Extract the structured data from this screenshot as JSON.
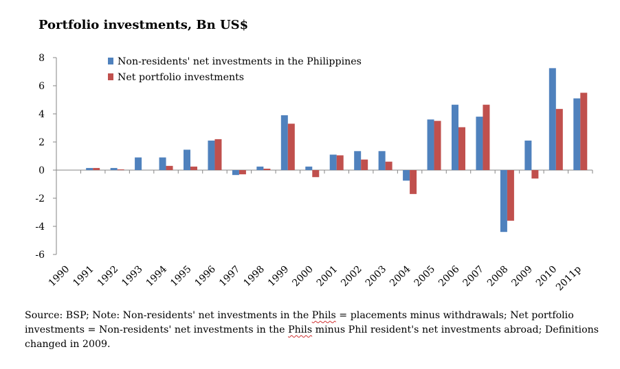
{
  "chart_data": {
    "type": "bar",
    "title": "Portfolio investments, Bn US$",
    "xlabel": "",
    "ylabel": "",
    "ylim": [
      -6,
      8
    ],
    "yticks": [
      8,
      6,
      4,
      2,
      0,
      -2,
      -4,
      -6
    ],
    "categories": [
      "1990",
      "1991",
      "1992",
      "1993",
      "1994",
      "1995",
      "1996",
      "1997",
      "1998",
      "1999",
      "2000",
      "2001",
      "2002",
      "2003",
      "2004",
      "2005",
      "2006",
      "2007",
      "2008",
      "2009",
      "2010",
      "2011p"
    ],
    "series": [
      {
        "name": "Non-residents' net investments in the Philippines",
        "color": "#4f81bd",
        "values": [
          0,
          0.15,
          0.15,
          0.9,
          0.9,
          1.45,
          2.1,
          -0.35,
          0.25,
          3.9,
          0.25,
          1.1,
          1.35,
          1.35,
          -0.75,
          3.6,
          4.65,
          3.8,
          -4.4,
          2.1,
          7.25,
          5.1
        ]
      },
      {
        "name": "Net portfolio investments",
        "color": "#c0504d",
        "values": [
          0,
          0.15,
          0.05,
          0,
          0.3,
          0.25,
          2.2,
          -0.3,
          0.1,
          3.3,
          -0.5,
          1.05,
          0.75,
          0.6,
          -1.7,
          3.5,
          3.05,
          4.65,
          -3.6,
          -0.6,
          4.35,
          5.5
        ]
      }
    ],
    "legend_position": "top-left",
    "grid": false
  },
  "footnote": {
    "part1": "Source: BSP; Note: Non-residents' net investments in the ",
    "phils1": "Phils",
    "part2": " = placements minus withdrawals; Net portfolio investments = Non-residents' net investments in the ",
    "phils2": "Phils",
    "part3": " minus Phil resident's net investments abroad; Definitions changed in 2009."
  }
}
